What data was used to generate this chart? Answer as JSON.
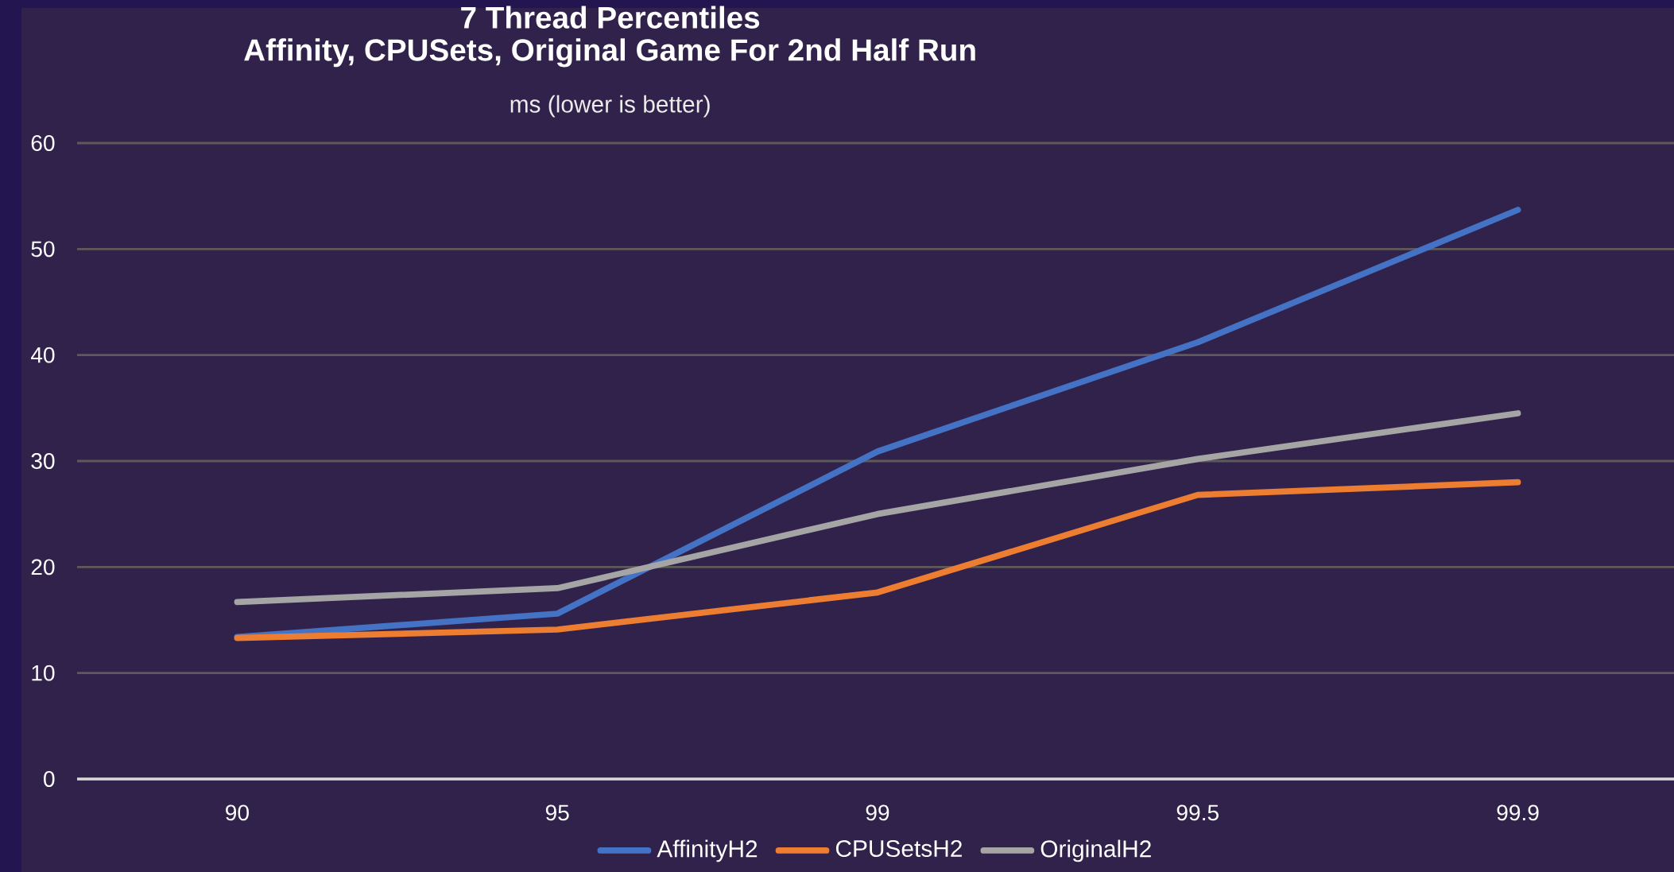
{
  "chart_data": {
    "type": "line",
    "title": "7 Thread Percentiles",
    "subtitle": "Affinity, CPUSets, Original Game For 2nd Half Run",
    "ylabel": "ms (lower is better)",
    "categories": [
      "90",
      "95",
      "99",
      "99.5",
      "99.9"
    ],
    "series": [
      {
        "name": "AffinityH2",
        "color": "#4472c4",
        "values": [
          13.4,
          15.6,
          30.9,
          41.2,
          53.7
        ]
      },
      {
        "name": "CPUSetsH2",
        "color": "#ed7d31",
        "values": [
          13.3,
          14.1,
          17.6,
          26.8,
          28.0
        ]
      },
      {
        "name": "OriginalH2",
        "color": "#a5a5a5",
        "values": [
          16.7,
          18.0,
          25.0,
          30.2,
          34.5
        ]
      }
    ],
    "ylim": [
      0,
      60
    ],
    "yticks": [
      0,
      10,
      20,
      30,
      40,
      50,
      60
    ],
    "grid": "y",
    "legend": "bottom",
    "marker": "none",
    "line_style": "solid"
  }
}
